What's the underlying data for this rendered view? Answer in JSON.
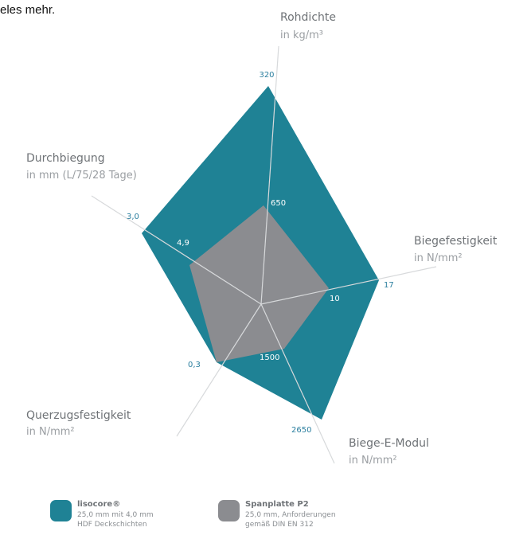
{
  "top_text": "eles mehr.",
  "chart_data": {
    "type": "radar",
    "colors": {
      "lisocore": "#1f8295",
      "spanplatte": "#8b8c90",
      "axis": "#d7d9db"
    },
    "axes": [
      {
        "id": "rohdichte",
        "title": "Rohdichte",
        "unit": "in kg/m³",
        "lisocore_label": "320",
        "spanplatte_label": "650"
      },
      {
        "id": "biegefest",
        "title": "Biegefestigkeit",
        "unit": "in N/mm²",
        "lisocore_label": "17",
        "spanplatte_label": "10"
      },
      {
        "id": "biegeemod",
        "title": "Biege-E-Modul",
        "unit": "in N/mm²",
        "lisocore_label": "2650",
        "spanplatte_label": "1500"
      },
      {
        "id": "querzug",
        "title": "Querzugsfestigkeit",
        "unit": "in N/mm²",
        "lisocore_label": "0,3",
        "spanplatte_label": ""
      },
      {
        "id": "durchbieg",
        "title": "Durchbiegung",
        "unit": "in mm (L/75/28 Tage)",
        "lisocore_label": "3,0",
        "spanplatte_label": "4,9"
      }
    ],
    "series": [
      {
        "name": "lisocore®",
        "values": [
          320,
          17,
          2650,
          0.3,
          3.0
        ]
      },
      {
        "name": "Spanplatte P2",
        "values": [
          650,
          10,
          1500,
          0.3,
          4.9
        ]
      }
    ]
  },
  "legend": {
    "items": [
      {
        "name": "lisocore®",
        "desc1": "25,0 mm mit 4,0 mm",
        "desc2": "HDF Deckschichten",
        "color": "#1f8295"
      },
      {
        "name": "Spanplatte P2",
        "desc1": "25,0 mm, Anforderungen",
        "desc2": "gemäß DIN EN 312",
        "color": "#8b8c90"
      }
    ]
  }
}
